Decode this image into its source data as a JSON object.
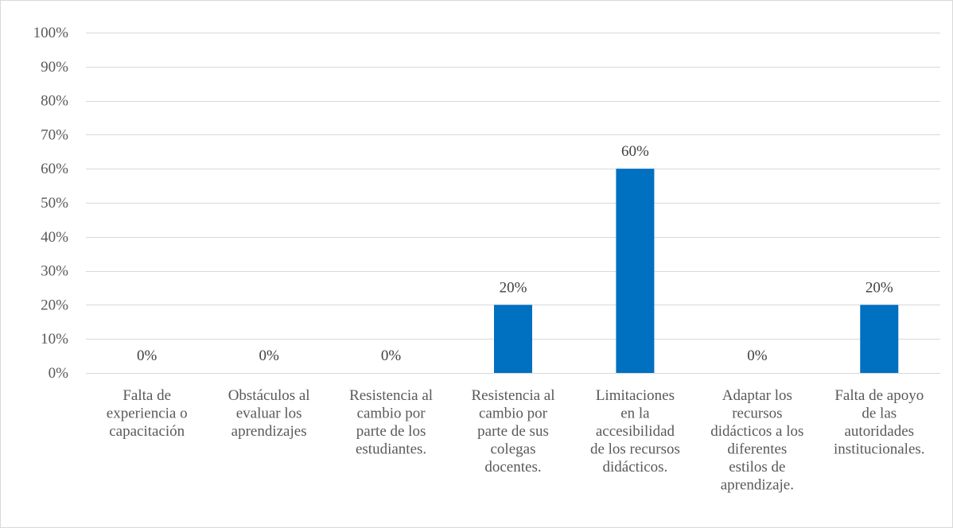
{
  "chart_data": {
    "type": "bar",
    "title": "",
    "xlabel": "",
    "ylabel": "",
    "ylim": [
      0,
      100
    ],
    "y_ticks": [
      0,
      10,
      20,
      30,
      40,
      50,
      60,
      70,
      80,
      90,
      100
    ],
    "y_tick_suffix": "%",
    "grid": true,
    "legend": "none",
    "bar_color": "#0070c0",
    "categories": [
      [
        "Falta de",
        "experiencia o",
        "capacitación"
      ],
      [
        "Obstáculos al",
        "evaluar los",
        "aprendizajes"
      ],
      [
        "Resistencia al",
        "cambio por",
        "parte de los",
        "estudiantes."
      ],
      [
        "Resistencia al",
        "cambio por",
        "parte de sus",
        "colegas",
        "docentes."
      ],
      [
        "Limitaciones",
        "en la",
        "accesibilidad",
        "de los recursos",
        "didácticos."
      ],
      [
        "Adaptar los",
        "recursos",
        "didácticos a los",
        "diferentes",
        "estilos de",
        "aprendizaje."
      ],
      [
        "Falta de apoyo",
        "de las",
        "autoridades",
        "institucionales."
      ]
    ],
    "values": [
      0,
      0,
      0,
      20,
      60,
      0,
      20
    ],
    "data_labels": [
      "0%",
      "0%",
      "0%",
      "20%",
      "60%",
      "0%",
      "20%"
    ]
  }
}
